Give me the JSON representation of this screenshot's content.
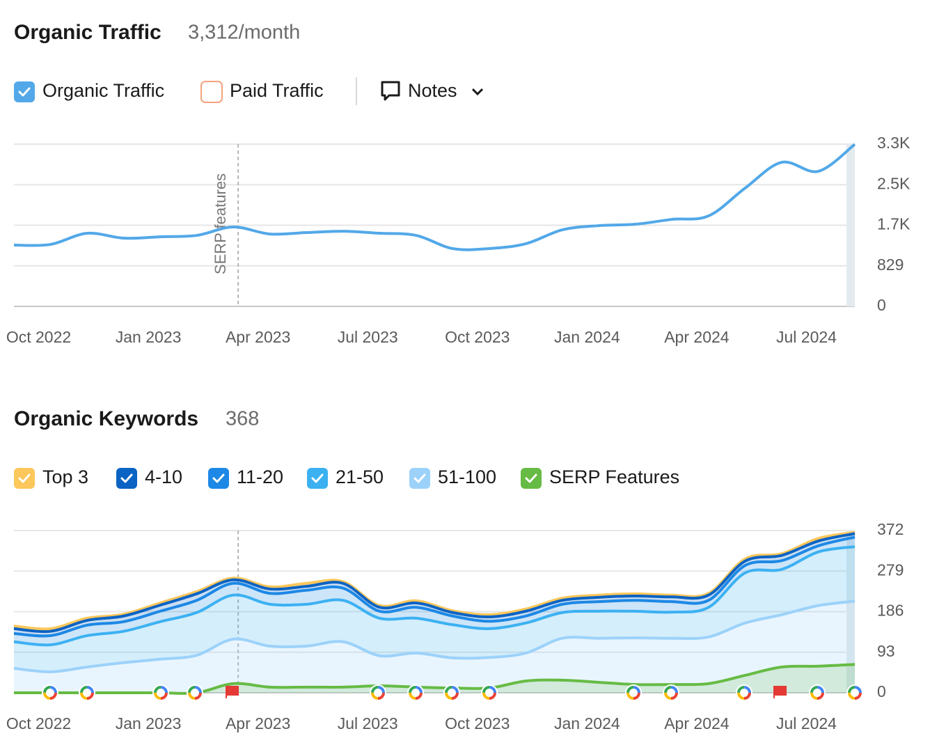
{
  "chart_data": [
    {
      "type": "line",
      "title": "Organic Traffic",
      "subtitle": "3,312/month",
      "x": [
        "2022-09",
        "2022-10",
        "2022-11",
        "2022-12",
        "2023-01",
        "2023-02",
        "2023-03",
        "2023-04",
        "2023-05",
        "2023-06",
        "2023-07",
        "2023-08",
        "2023-09",
        "2023-10",
        "2023-11",
        "2023-12",
        "2024-01",
        "2024-02",
        "2024-03",
        "2024-04",
        "2024-05",
        "2024-06",
        "2024-07",
        "2024-08"
      ],
      "xlim": [
        "2022-09",
        "2024-08"
      ],
      "xticks": [
        {
          "value": "2022-10",
          "label": "Oct 2022"
        },
        {
          "value": "2023-01",
          "label": "Jan 2023"
        },
        {
          "value": "2023-04",
          "label": "Apr 2023"
        },
        {
          "value": "2023-07",
          "label": "Jul 2023"
        },
        {
          "value": "2023-10",
          "label": "Oct 2023"
        },
        {
          "value": "2024-01",
          "label": "Jan 2024"
        },
        {
          "value": "2024-04",
          "label": "Apr 2024"
        },
        {
          "value": "2024-07",
          "label": "Jul 2024"
        }
      ],
      "ylim": [
        0,
        3316
      ],
      "yticks": [
        0,
        829,
        {
          "value": 1658,
          "label": "1.7K"
        },
        {
          "value": 2487,
          "label": "2.5K"
        },
        {
          "value": 3316,
          "label": "3.3K"
        }
      ],
      "grid": true,
      "series": [
        {
          "name": "Organic Traffic",
          "color": "#52a8e8",
          "values": [
            1252,
            1266,
            1494,
            1394,
            1422,
            1451,
            1622,
            1479,
            1508,
            1536,
            1494,
            1451,
            1181,
            1181,
            1280,
            1565,
            1650,
            1679,
            1778,
            1849,
            2418,
            2945,
            2760,
            3312
          ]
        }
      ],
      "inactive_series": [
        {
          "name": "Paid Traffic",
          "color": "#f4a37a"
        }
      ],
      "notes_button": "Notes",
      "annotations": [
        {
          "x": "2023-03",
          "text": "SERP features"
        }
      ]
    },
    {
      "type": "stacked_area",
      "title": "Organic Keywords",
      "subtitle": "368",
      "x": [
        "2022-09",
        "2022-10",
        "2022-11",
        "2022-12",
        "2023-01",
        "2023-02",
        "2023-03",
        "2023-04",
        "2023-05",
        "2023-06",
        "2023-07",
        "2023-08",
        "2023-09",
        "2023-10",
        "2023-11",
        "2023-12",
        "2024-01",
        "2024-02",
        "2024-03",
        "2024-04",
        "2024-05",
        "2024-06",
        "2024-07",
        "2024-08"
      ],
      "xlim": [
        "2022-09",
        "2024-08"
      ],
      "xticks": [
        {
          "value": "2022-10",
          "label": "Oct 2022"
        },
        {
          "value": "2023-01",
          "label": "Jan 2023"
        },
        {
          "value": "2023-04",
          "label": "Apr 2023"
        },
        {
          "value": "2023-07",
          "label": "Jul 2023"
        },
        {
          "value": "2023-10",
          "label": "Oct 2023"
        },
        {
          "value": "2024-01",
          "label": "Jan 2024"
        },
        {
          "value": "2024-04",
          "label": "Apr 2024"
        },
        {
          "value": "2024-07",
          "label": "Jul 2024"
        }
      ],
      "ylim": [
        0,
        372
      ],
      "yticks": [
        0,
        93,
        186,
        279,
        372
      ],
      "grid": true,
      "series": [
        {
          "name": "Top 3",
          "color": "#fcc75b",
          "stack": true,
          "values": [
            6,
            6,
            5,
            4,
            5,
            5,
            4,
            5,
            7,
            4,
            4,
            5,
            4,
            5,
            5,
            5,
            5,
            5,
            4,
            4,
            5,
            4,
            6,
            3
          ]
        },
        {
          "name": "4-10",
          "color": "#0b63c4",
          "stack": true,
          "values": [
            11,
            10,
            11,
            13,
            14,
            15,
            8,
            10,
            9,
            11,
            9,
            10,
            8,
            10,
            11,
            9,
            10,
            10,
            11,
            12,
            10,
            12,
            11,
            8
          ]
        },
        {
          "name": "11-20",
          "color": "#1d88e5",
          "stack": true,
          "values": [
            19,
            21,
            24,
            22,
            24,
            28,
            27,
            25,
            32,
            28,
            16,
            25,
            20,
            17,
            16,
            19,
            22,
            25,
            24,
            16,
            17,
            20,
            14,
            22
          ]
        },
        {
          "name": "21-50",
          "color": "#3cb1f2",
          "stack": true,
          "values": [
            61,
            62,
            72,
            72,
            86,
            98,
            101,
            96,
            96,
            95,
            86,
            80,
            76,
            66,
            69,
            59,
            62,
            61,
            60,
            68,
            115,
            104,
            123,
            125
          ]
        },
        {
          "name": "51-100",
          "color": "#9cd2fa",
          "stack": true,
          "values": [
            56,
            48,
            59,
            69,
            77,
            86,
            123,
            107,
            107,
            117,
            85,
            91,
            80,
            81,
            91,
            125,
            125,
            126,
            125,
            128,
            160,
            179,
            200,
            210
          ]
        },
        {
          "name": "SERP Features",
          "color": "#66bb44",
          "stack": false,
          "values": [
            0,
            0,
            0,
            0,
            0,
            0,
            21,
            13,
            13,
            13,
            16,
            13,
            11,
            11,
            27,
            29,
            24,
            19,
            19,
            21,
            40,
            59,
            61,
            65
          ]
        }
      ],
      "annotations": [
        {
          "x": "2023-03"
        }
      ]
    }
  ]
}
